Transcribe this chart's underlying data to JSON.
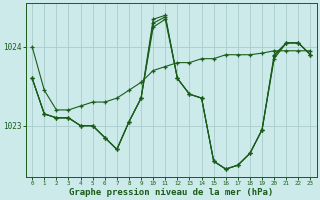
{
  "background_color": "#cceaea",
  "grid_color": "#aacccc",
  "line_color": "#1a5c1a",
  "xlabel": "Graphe pression niveau de la mer (hPa)",
  "xlabel_fontsize": 6.5,
  "ylim_min": 1022.35,
  "ylim_max": 1024.55,
  "xlim_min": -0.5,
  "xlim_max": 23.5,
  "yticks": [
    1023,
    1024
  ],
  "xtick_labels": [
    "0",
    "1",
    "2",
    "3",
    "4",
    "5",
    "6",
    "7",
    "8",
    "9",
    "10",
    "11",
    "12",
    "13",
    "14",
    "15",
    "16",
    "17",
    "18",
    "19",
    "20",
    "21",
    "22",
    "23"
  ],
  "series": [
    [
      1024.0,
      1023.45,
      1023.2,
      1023.2,
      1023.25,
      1023.3,
      1023.3,
      1023.35,
      1023.45,
      1023.55,
      1023.7,
      1023.75,
      1023.8,
      1023.8,
      1023.85,
      1023.85,
      1023.9,
      1023.9,
      1023.9,
      1023.92,
      1023.95,
      1023.95,
      1023.95,
      1023.95
    ],
    [
      1023.6,
      1023.15,
      1023.1,
      1023.1,
      1023.0,
      1023.0,
      1022.85,
      1022.7,
      1023.05,
      1023.35,
      1024.35,
      1024.4,
      1023.6,
      1023.4,
      1023.35,
      1022.55,
      1022.45,
      1022.5,
      1022.65,
      1022.95,
      1023.9,
      1024.05,
      1024.05,
      1023.9
    ],
    [
      1023.6,
      1023.15,
      1023.1,
      1023.1,
      1023.0,
      1023.0,
      1022.85,
      1022.7,
      1023.05,
      1023.35,
      1024.25,
      1024.35,
      1023.6,
      1023.4,
      1023.35,
      1022.55,
      1022.45,
      1022.5,
      1022.65,
      1022.95,
      1023.85,
      1024.05,
      1024.05,
      1023.9
    ],
    [
      1023.6,
      1023.15,
      1023.1,
      1023.1,
      1023.0,
      1023.0,
      1022.85,
      1022.7,
      1023.05,
      1023.35,
      1024.3,
      1024.38,
      1023.6,
      1023.4,
      1023.35,
      1022.55,
      1022.45,
      1022.5,
      1022.65,
      1022.95,
      1023.88,
      1024.05,
      1024.05,
      1023.9
    ]
  ]
}
